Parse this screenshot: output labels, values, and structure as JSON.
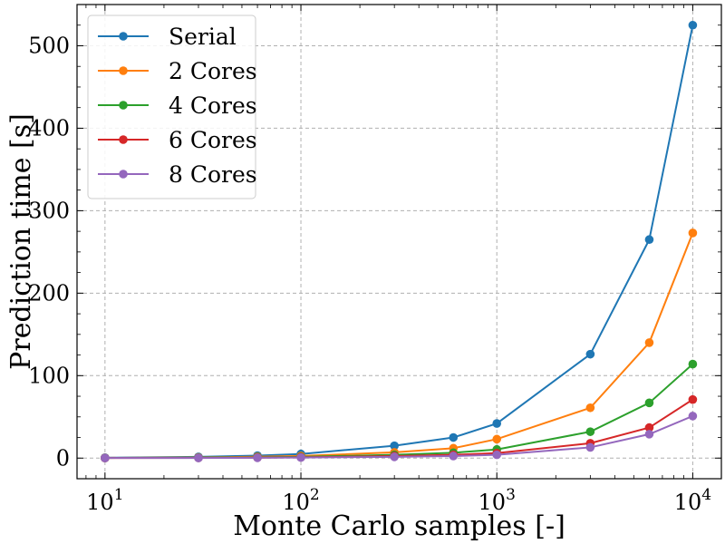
{
  "chart_data": {
    "type": "line",
    "x_scale": "log",
    "xlabel": "Monte Carlo samples [-]",
    "ylabel": "Prediction time [s]",
    "xlim": [
      7.2,
      14000
    ],
    "ylim": [
      -25,
      550
    ],
    "x_ticks": [
      {
        "value": 10,
        "base": "10",
        "exp": "1"
      },
      {
        "value": 100,
        "base": "10",
        "exp": "2"
      },
      {
        "value": 1000,
        "base": "10",
        "exp": "3"
      },
      {
        "value": 10000,
        "base": "10",
        "exp": "4"
      }
    ],
    "y_ticks": [
      0,
      100,
      200,
      300,
      400,
      500
    ],
    "grid": true,
    "legend_position": "top-left",
    "x": [
      10,
      30,
      60,
      100,
      300,
      600,
      1000,
      3000,
      6000,
      10000
    ],
    "series": [
      {
        "name": "Serial",
        "color": "#1f77b4",
        "values": [
          0.5,
          1.5,
          3,
          5,
          15,
          25,
          42,
          126,
          265,
          525
        ]
      },
      {
        "name": "2 Cores",
        "color": "#ff7f0e",
        "values": [
          0.3,
          0.8,
          1.6,
          2.6,
          7,
          12,
          23,
          61,
          140,
          273
        ]
      },
      {
        "name": "4 Cores",
        "color": "#2ca02c",
        "values": [
          0.2,
          0.5,
          1,
          1.5,
          4,
          6.5,
          10.5,
          32,
          67,
          114
        ]
      },
      {
        "name": "6 Cores",
        "color": "#d62728",
        "values": [
          0.1,
          0.3,
          0.6,
          1,
          2.5,
          4,
          6,
          18,
          37,
          71
        ]
      },
      {
        "name": "8 Cores",
        "color": "#9467bd",
        "values": [
          0.1,
          0.2,
          0.4,
          0.7,
          1.5,
          2.5,
          4,
          13,
          29,
          51
        ]
      }
    ]
  }
}
